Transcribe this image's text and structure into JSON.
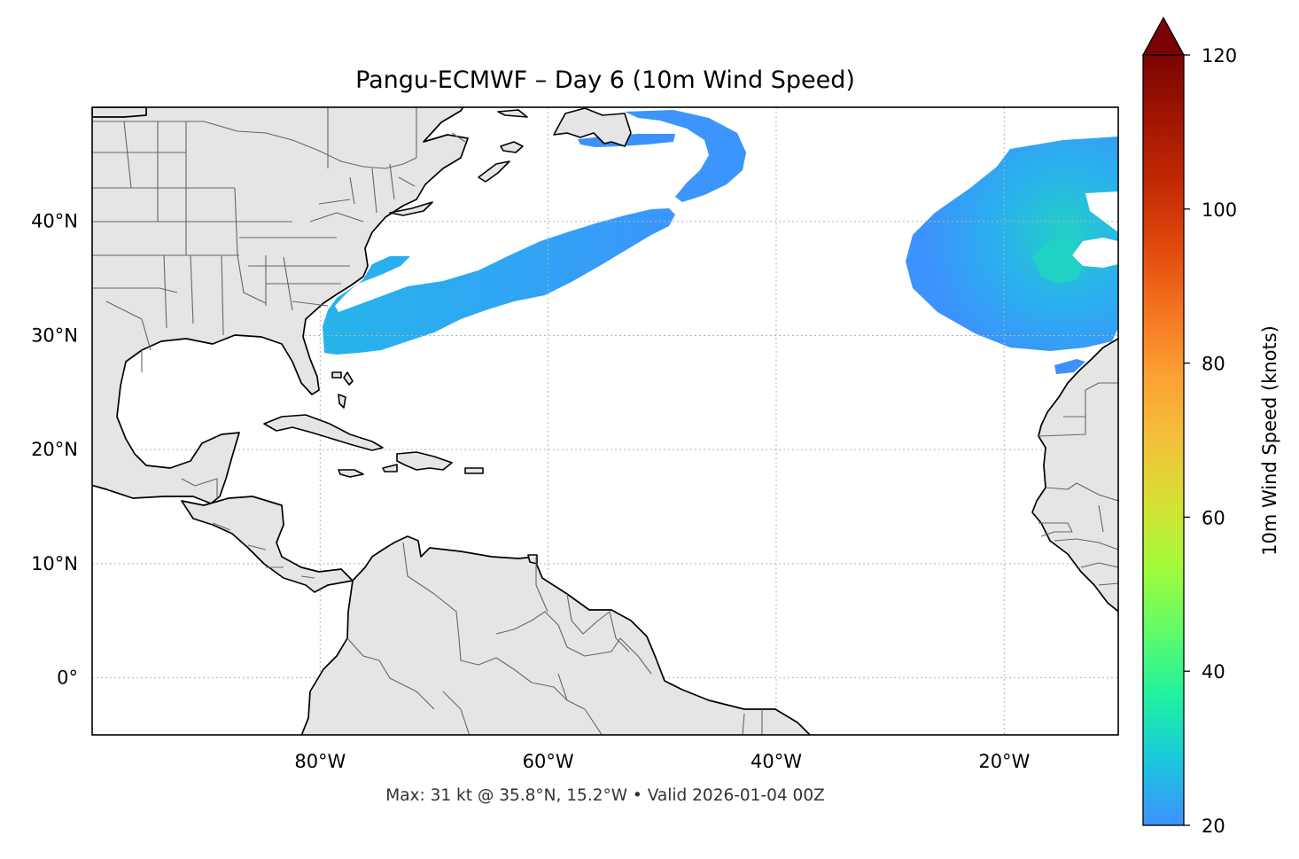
{
  "map": {
    "title": "Pangu-ECMWF – Day 6 (10m Wind Speed)",
    "footer": "Max: 31 kt @ 35.8°N, 15.2°W • Valid 2026-01-04 00Z",
    "model": "Pangu-ECMWF",
    "forecast_day": 6,
    "variable": "10m Wind Speed",
    "valid_time": "2026-01-04 00Z",
    "extent": {
      "lon_min": -100,
      "lon_max": -10,
      "lat_min": -5,
      "lat_max": 50
    },
    "lat_ticks": [
      {
        "value": 40,
        "label": "40°N"
      },
      {
        "value": 30,
        "label": "30°N"
      },
      {
        "value": 20,
        "label": "20°N"
      },
      {
        "value": 10,
        "label": "10°N"
      },
      {
        "value": 0,
        "label": "0°"
      }
    ],
    "lon_ticks": [
      {
        "value": -80,
        "label": "80°W"
      },
      {
        "value": -60,
        "label": "60°W"
      },
      {
        "value": -40,
        "label": "40°W"
      },
      {
        "value": -20,
        "label": "20°W"
      }
    ],
    "gridlines": true,
    "max_wind": {
      "value_kt": 31,
      "lat": 35.8,
      "lon": -15.2
    },
    "wind_regions": [
      {
        "id": "us-east-coast-band",
        "speed_kt": 24
      },
      {
        "id": "newfoundland-arc",
        "speed_kt": 22
      },
      {
        "id": "eastern-atlantic-low",
        "speed_kt": 26
      },
      {
        "id": "eastern-atlantic-core",
        "speed_kt": 31
      }
    ],
    "colors": {
      "land": "#e5e5e5",
      "ocean": "#ffffff",
      "coastline": "#000000",
      "borders": "#666666",
      "grid": "#b4b4b4"
    }
  },
  "colorbar": {
    "label": "10m Wind Speed (knots)",
    "min": 20,
    "max": 120,
    "extend": "max",
    "ticks": [
      {
        "value": 20,
        "label": "20"
      },
      {
        "value": 40,
        "label": "40"
      },
      {
        "value": 60,
        "label": "60"
      },
      {
        "value": 80,
        "label": "80"
      },
      {
        "value": 100,
        "label": "100"
      },
      {
        "value": 120,
        "label": "120"
      }
    ],
    "colormap": "turbo",
    "stops": [
      "#3e90fe",
      "#1ac7de",
      "#1ff1a0",
      "#5efb6a",
      "#a2fb3a",
      "#d5e134",
      "#f3c03a",
      "#fca032",
      "#f57520",
      "#e1490d",
      "#c22a04",
      "#a21502",
      "#7a0403"
    ],
    "extend_color": "#7a0403"
  }
}
